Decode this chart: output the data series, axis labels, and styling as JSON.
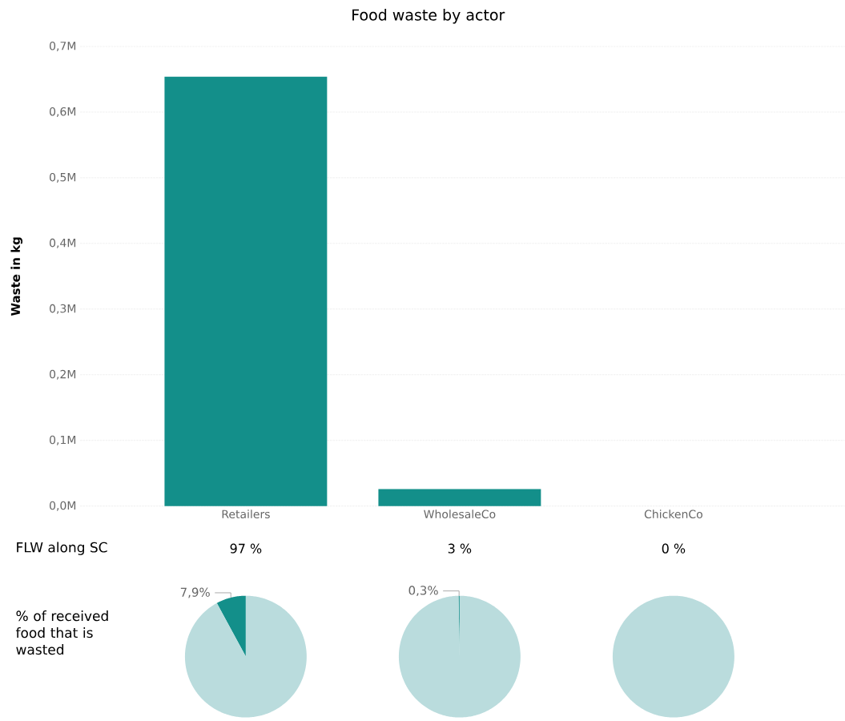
{
  "chart_data": [
    {
      "type": "bar",
      "title": "Food waste by actor",
      "ylabel": "Waste in kg",
      "categories": [
        "Retailers",
        "WholesaleCo",
        "ChickenCo"
      ],
      "values": [
        654000,
        26000,
        0
      ],
      "color": "#138f8a",
      "ylim": [
        0,
        700000
      ],
      "yticks": [
        {
          "value": 0,
          "label": "0,0M"
        },
        {
          "value": 100000,
          "label": "0,1M"
        },
        {
          "value": 200000,
          "label": "0,2M"
        },
        {
          "value": 300000,
          "label": "0,3M"
        },
        {
          "value": 400000,
          "label": "0,4M"
        },
        {
          "value": 500000,
          "label": "0,5M"
        },
        {
          "value": 600000,
          "label": "0,6M"
        },
        {
          "value": 700000,
          "label": "0,7M"
        }
      ],
      "grid": "y"
    },
    {
      "type": "other",
      "title": "FLW along SC",
      "annotations": [
        "97 %",
        "3 %",
        "0 %"
      ]
    },
    {
      "type": "pie",
      "title": "% of received food that is wasted",
      "categories": [
        null,
        null
      ],
      "values": [
        7.9,
        92.1
      ],
      "colors": [
        "#138f8a",
        "#badcdd"
      ],
      "value_labels": [
        "7,9%",
        null
      ]
    },
    {
      "type": "pie",
      "categories": [
        null,
        null
      ],
      "values": [
        0.3,
        99.7
      ],
      "colors": [
        "#138f8a",
        "#badcdd"
      ],
      "value_labels": [
        "0,3%",
        null
      ]
    },
    {
      "type": "pie",
      "categories": [
        null,
        null
      ],
      "values": [
        0,
        100
      ],
      "colors": [
        "#138f8a",
        "#badcdd"
      ]
    }
  ]
}
